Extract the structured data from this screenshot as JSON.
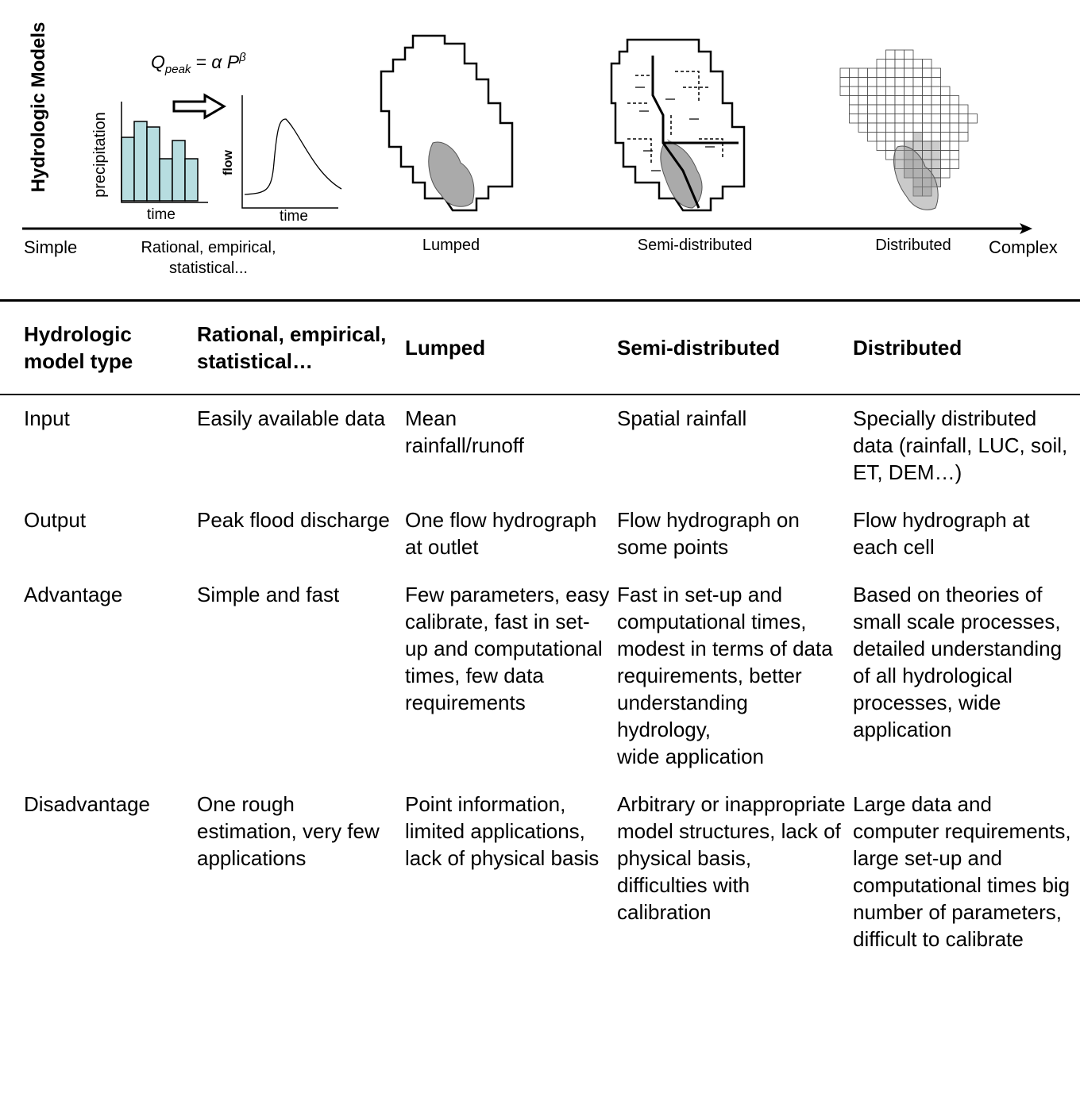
{
  "diagram": {
    "title": "Hydrologic Models",
    "formula": {
      "q": "Q",
      "sub": "peak",
      "rest": "= α P",
      "sup": "β"
    },
    "precip_label": "precipitation",
    "precip_time_label": "time",
    "flow_label": "flow",
    "flow_time_label": "time",
    "scale_start": "Simple",
    "scale_end": "Complex",
    "model_labels": [
      "Rational, empirical, statistical...",
      "Lumped",
      "Semi-distributed",
      "Distributed"
    ]
  },
  "table": {
    "header": [
      "Hydrologic model type",
      "Rational, empirical, statistical…",
      "Lumped",
      "Semi-distributed",
      "Distributed"
    ],
    "rows": [
      [
        "Input",
        "Easily available data",
        "Mean\nrainfall/runoff",
        "Spatial rainfall",
        "Specially distributed data (rainfall, LUC, soil, ET, DEM…)"
      ],
      [
        "Output",
        "Peak flood discharge",
        "One flow hydrograph at outlet",
        "Flow hydrograph on some points",
        "Flow hydrograph at each cell"
      ],
      [
        "Advantage",
        "Simple and fast",
        "Few parameters, easy calibrate, fast in set-up and computational times, few data requirements",
        "Fast in set-up and computational times, modest in terms of data requirements, better understanding hydrology,\nwide application",
        "Based on theories of small scale processes, detailed understanding of all hydrological processes, wide application"
      ],
      [
        "Disadvantage",
        "One rough estimation, very few applications",
        "Point information, limited applications, lack of physical basis",
        "Arbitrary or inappropriate model structures, lack of physical basis, difficulties with calibration",
        "Large data and computer requirements, large set-up and computational times big number of parameters, difficult to calibrate"
      ]
    ]
  }
}
